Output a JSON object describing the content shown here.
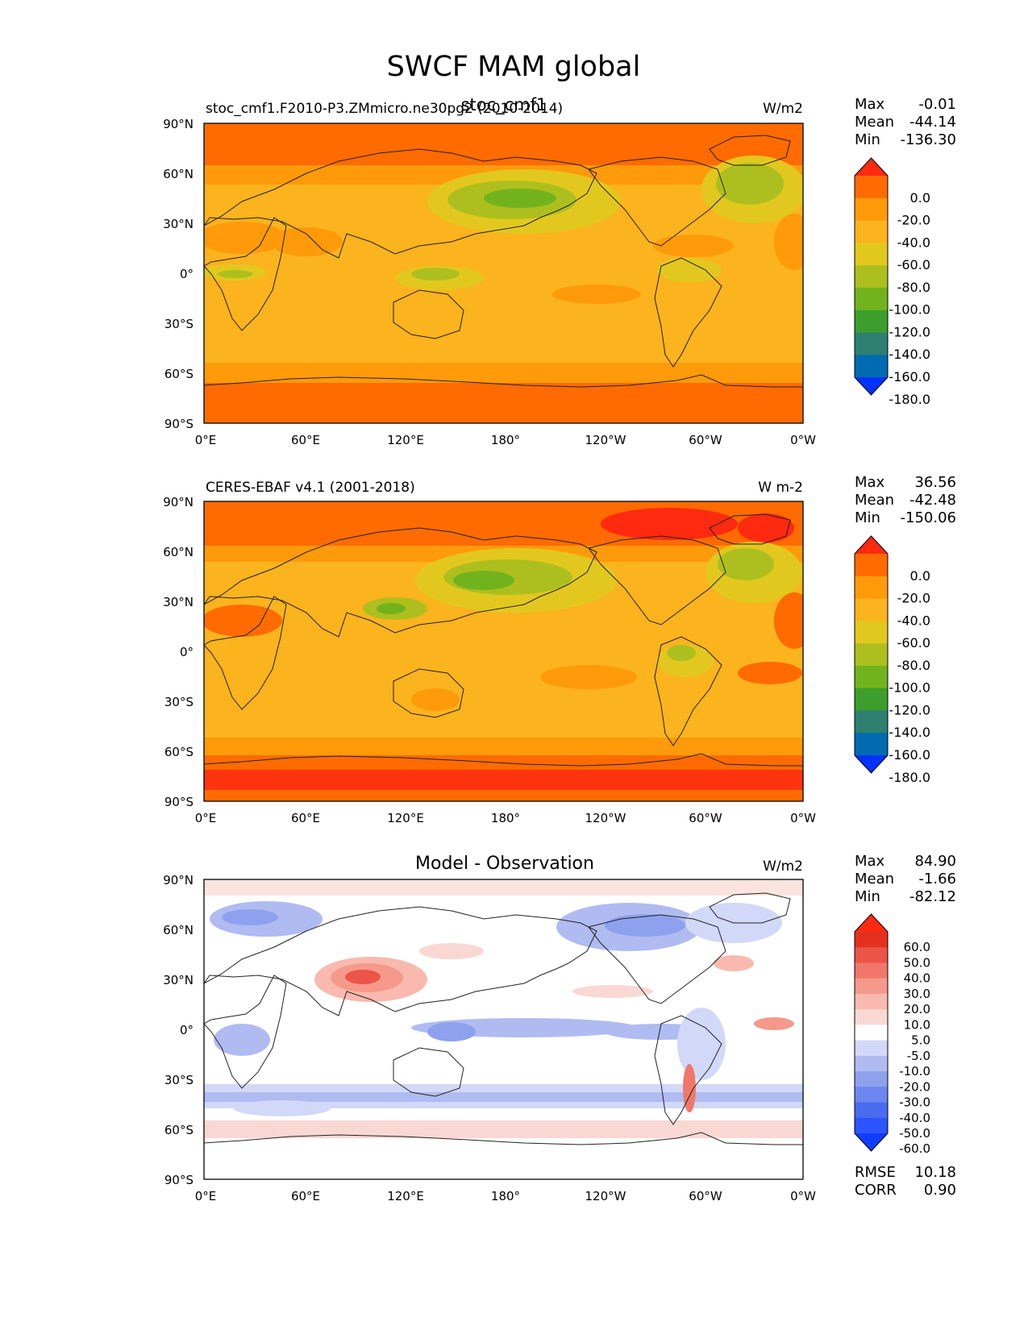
{
  "figure": {
    "title": "SWCF MAM global"
  },
  "colors": {
    "levels": [
      "#0033ff",
      "#006bb0",
      "#2e8070",
      "#3c9e2d",
      "#72b31d",
      "#adbf1e",
      "#e2c81e",
      "#fbb31e",
      "#ff9a0a",
      "#ff6b00",
      "#ff2a10"
    ],
    "diff": [
      "#0f3cff",
      "#2d55ff",
      "#4a6cf0",
      "#6b86ee",
      "#8ea1ee",
      "#b0bbf2",
      "#d2d8f8",
      "#ffffff",
      "#f9d8d3",
      "#f9b9ae",
      "#f5998b",
      "#f0776a",
      "#ec5448",
      "#e4311e",
      "#ff2a10"
    ]
  },
  "chart_data": [
    {
      "type": "heatmap",
      "panel": "model",
      "title": "stoc_cmf1",
      "subtitle_left": "stoc_cmf1.F2010-P3.ZMmicro.ne30pg2 (2010-2014)",
      "units": "W/m2",
      "xticks": [
        "0°E",
        "60°E",
        "120°E",
        "180°",
        "120°W",
        "60°W",
        "0°W"
      ],
      "yticks": [
        "90°N",
        "60°N",
        "30°N",
        "0°",
        "30°S",
        "60°S",
        "90°S"
      ],
      "xlim": [
        0,
        360
      ],
      "ylim": [
        -90,
        90
      ],
      "stats": {
        "max_label": "Max",
        "max": "-0.01",
        "mean_label": "Mean",
        "mean": "-44.14",
        "min_label": "Min",
        "min": "-136.30"
      },
      "colorbar_levels": [
        "0.0",
        "-20.0",
        "-40.0",
        "-60.0",
        "-80.0",
        "-100.0",
        "-120.0",
        "-140.0",
        "-160.0",
        "-180.0"
      ]
    },
    {
      "type": "heatmap",
      "panel": "obs",
      "title": "",
      "subtitle_left": "CERES-EBAF v4.1 (2001-2018)",
      "units": "W m-2",
      "xticks": [
        "0°E",
        "60°E",
        "120°E",
        "180°",
        "120°W",
        "60°W",
        "0°W"
      ],
      "yticks": [
        "90°N",
        "60°N",
        "30°N",
        "0°",
        "30°S",
        "60°S",
        "90°S"
      ],
      "xlim": [
        0,
        360
      ],
      "ylim": [
        -90,
        90
      ],
      "stats": {
        "max_label": "Max",
        "max": "36.56",
        "mean_label": "Mean",
        "mean": "-42.48",
        "min_label": "Min",
        "min": "-150.06"
      },
      "colorbar_levels": [
        "0.0",
        "-20.0",
        "-40.0",
        "-60.0",
        "-80.0",
        "-100.0",
        "-120.0",
        "-140.0",
        "-160.0",
        "-180.0"
      ]
    },
    {
      "type": "heatmap",
      "panel": "diff",
      "title": "Model - Observation",
      "subtitle_left": "",
      "units": "W/m2",
      "xticks": [
        "0°E",
        "60°E",
        "120°E",
        "180°",
        "120°W",
        "60°W",
        "0°W"
      ],
      "yticks": [
        "90°N",
        "60°N",
        "30°N",
        "0°",
        "30°S",
        "60°S",
        "90°S"
      ],
      "xlim": [
        0,
        360
      ],
      "ylim": [
        -90,
        90
      ],
      "stats": {
        "max_label": "Max",
        "max": "84.90",
        "mean_label": "Mean",
        "mean": "-1.66",
        "min_label": "Min",
        "min": "-82.12"
      },
      "colorbar_levels": [
        "60.0",
        "50.0",
        "40.0",
        "30.0",
        "20.0",
        "10.0",
        "5.0",
        "-5.0",
        "-10.0",
        "-20.0",
        "-30.0",
        "-40.0",
        "-50.0",
        "-60.0"
      ],
      "extra_stats": {
        "rmse_label": "RMSE",
        "rmse": "10.18",
        "corr_label": "CORR",
        "corr": "0.90"
      }
    }
  ]
}
